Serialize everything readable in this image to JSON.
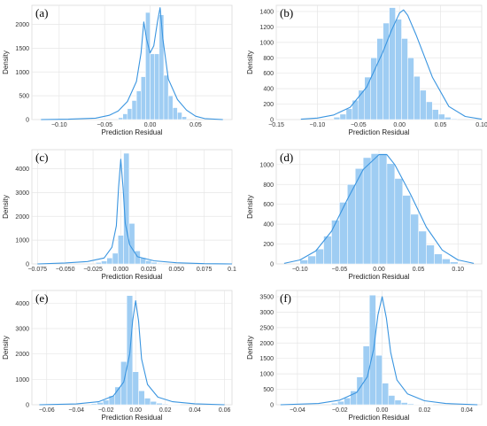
{
  "chart_data": [
    {
      "panel_label": "(a)",
      "type": "bar",
      "xlabel": "Prediction Residual",
      "ylabel": "Density",
      "xlim": [
        -0.13,
        0.09
      ],
      "ylim": [
        0,
        2400
      ],
      "xticks": [
        -0.1,
        -0.05,
        0.0,
        0.05
      ],
      "yticks": [
        0,
        500,
        1000,
        1500,
        2000
      ],
      "xtick_labels": [
        "−0.10",
        "−0.05",
        "0.00",
        "0.05"
      ],
      "bins": {
        "start": -0.035,
        "width": 0.005,
        "heights": [
          40,
          120,
          230,
          400,
          600,
          900,
          2250,
          1380,
          1380,
          2200,
          930,
          500,
          250,
          150,
          60
        ]
      },
      "kde": {
        "x": [
          -0.12,
          -0.09,
          -0.06,
          -0.045,
          -0.035,
          -0.025,
          -0.015,
          -0.01,
          -0.007,
          -0.004,
          0,
          0.004,
          0.008,
          0.011,
          0.014,
          0.02,
          0.03,
          0.04,
          0.05,
          0.06,
          0.08
        ],
        "y": [
          0,
          8,
          30,
          90,
          180,
          380,
          800,
          1400,
          2050,
          1700,
          1400,
          1550,
          2050,
          2350,
          1700,
          850,
          420,
          200,
          70,
          20,
          0
        ]
      }
    },
    {
      "panel_label": "(b)",
      "type": "bar",
      "xlabel": "Prediction Residual",
      "ylabel": "Density",
      "xlim": [
        -0.15,
        0.1
      ],
      "ylim": [
        0,
        1480
      ],
      "xticks": [
        -0.15,
        -0.1,
        -0.05,
        0.0,
        0.05,
        0.1
      ],
      "yticks": [
        0,
        200,
        400,
        600,
        800,
        1000,
        1200,
        1400
      ],
      "xtick_labels": [
        "−0.15",
        "−0.10",
        "−0.05",
        "0.00",
        "0.05",
        "0.10"
      ],
      "bins": {
        "start": -0.08,
        "width": 0.0075,
        "heights": [
          30,
          70,
          140,
          250,
          380,
          550,
          800,
          1050,
          1250,
          1450,
          1300,
          1050,
          800,
          560,
          380,
          230,
          130,
          70,
          30,
          10
        ]
      },
      "kde": {
        "x": [
          -0.12,
          -0.1,
          -0.08,
          -0.06,
          -0.04,
          -0.02,
          -0.01,
          0,
          0.005,
          0.01,
          0.02,
          0.04,
          0.06,
          0.08,
          0.1
        ],
        "y": [
          5,
          20,
          60,
          160,
          420,
          880,
          1150,
          1380,
          1420,
          1350,
          1100,
          550,
          170,
          40,
          5
        ]
      }
    },
    {
      "panel_label": "(c)",
      "type": "bar",
      "xlabel": "Prediction Residual",
      "ylabel": "Density",
      "xlim": [
        -0.08,
        0.1
      ],
      "ylim": [
        0,
        4800
      ],
      "xticks": [
        -0.075,
        -0.05,
        -0.025,
        0.0,
        0.025,
        0.05,
        0.075,
        0.1
      ],
      "yticks": [
        0,
        1000,
        2000,
        3000,
        4000
      ],
      "xtick_labels": [
        "−0.075",
        "−0.050",
        "−0.025",
        "0.000",
        "0.025",
        "0.050",
        "0.075",
        "0.1"
      ],
      "bins": {
        "start": -0.0225,
        "width": 0.005,
        "heights": [
          60,
          120,
          250,
          450,
          1200,
          4650,
          1700,
          550,
          260,
          140,
          70,
          30
        ]
      },
      "kde": {
        "x": [
          -0.075,
          -0.05,
          -0.03,
          -0.015,
          -0.008,
          -0.004,
          -0.002,
          0,
          0.002,
          0.004,
          0.008,
          0.015,
          0.03,
          0.05,
          0.075,
          0.1
        ],
        "y": [
          0,
          40,
          100,
          250,
          700,
          1600,
          3200,
          4400,
          3200,
          1700,
          800,
          300,
          130,
          50,
          10,
          0
        ]
      }
    },
    {
      "panel_label": "(d)",
      "type": "bar",
      "xlabel": "Prediction Residual",
      "ylabel": "Density",
      "xlim": [
        -0.13,
        0.13
      ],
      "ylim": [
        0,
        1150
      ],
      "xticks": [
        -0.1,
        -0.05,
        0.0,
        0.05,
        0.1
      ],
      "yticks": [
        0,
        200,
        400,
        600,
        800,
        1000
      ],
      "xtick_labels": [
        "−0.10",
        "−0.05",
        "0.00",
        "0.05",
        "0.10"
      ],
      "bins": {
        "start": -0.1,
        "width": 0.01,
        "heights": [
          40,
          80,
          150,
          280,
          440,
          620,
          800,
          960,
          1070,
          1110,
          1110,
          1010,
          860,
          690,
          500,
          330,
          190,
          100,
          50,
          20
        ]
      },
      "kde": {
        "x": [
          -0.12,
          -0.1,
          -0.08,
          -0.06,
          -0.04,
          -0.02,
          0,
          0.01,
          0.02,
          0.04,
          0.06,
          0.08,
          0.1,
          0.12
        ],
        "y": [
          5,
          40,
          130,
          330,
          650,
          950,
          1100,
          1100,
          1000,
          700,
          370,
          140,
          40,
          5
        ]
      }
    },
    {
      "panel_label": "(e)",
      "type": "bar",
      "xlabel": "Prediction Residual",
      "ylabel": "Density",
      "xlim": [
        -0.07,
        0.065
      ],
      "ylim": [
        0,
        4500
      ],
      "xticks": [
        -0.06,
        -0.04,
        -0.02,
        0.0,
        0.02,
        0.04,
        0.06
      ],
      "yticks": [
        0,
        1000,
        2000,
        3000,
        4000
      ],
      "xtick_labels": [
        "−0.06",
        "−0.04",
        "−0.02",
        "0.00",
        "0.02",
        "0.04",
        "0.06"
      ],
      "bins": {
        "start": -0.03,
        "width": 0.004,
        "heights": [
          40,
          90,
          180,
          350,
          700,
          1700,
          4300,
          1300,
          550,
          260,
          130,
          60,
          30,
          15,
          5
        ]
      },
      "kde": {
        "x": [
          -0.065,
          -0.04,
          -0.025,
          -0.015,
          -0.008,
          -0.004,
          -0.002,
          0,
          0.002,
          0.004,
          0.008,
          0.015,
          0.025,
          0.04,
          0.06
        ],
        "y": [
          0,
          30,
          120,
          350,
          900,
          2000,
          3300,
          4100,
          3300,
          1800,
          800,
          300,
          120,
          40,
          0
        ]
      }
    },
    {
      "panel_label": "(f)",
      "type": "bar",
      "xlabel": "Prediction Residual",
      "ylabel": "Density",
      "xlim": [
        -0.05,
        0.047
      ],
      "ylim": [
        0,
        3700
      ],
      "xticks": [
        -0.04,
        -0.02,
        0.0,
        0.02,
        0.04
      ],
      "yticks": [
        0,
        500,
        1000,
        1500,
        2000,
        2500,
        3000,
        3500
      ],
      "xtick_labels": [
        "−0.04",
        "−0.02",
        "0.00",
        "0.02",
        "0.04"
      ],
      "bins": {
        "start": -0.024,
        "width": 0.003,
        "heights": [
          50,
          110,
          220,
          450,
          900,
          1900,
          3550,
          1600,
          700,
          300,
          150,
          70,
          30,
          15,
          8,
          4
        ]
      },
      "kde": {
        "x": [
          -0.048,
          -0.03,
          -0.02,
          -0.012,
          -0.007,
          -0.004,
          -0.002,
          0,
          0.002,
          0.004,
          0.007,
          0.012,
          0.02,
          0.03,
          0.045
        ],
        "y": [
          0,
          40,
          150,
          400,
          900,
          1800,
          2900,
          3500,
          2800,
          1700,
          800,
          350,
          130,
          40,
          0
        ]
      }
    }
  ]
}
